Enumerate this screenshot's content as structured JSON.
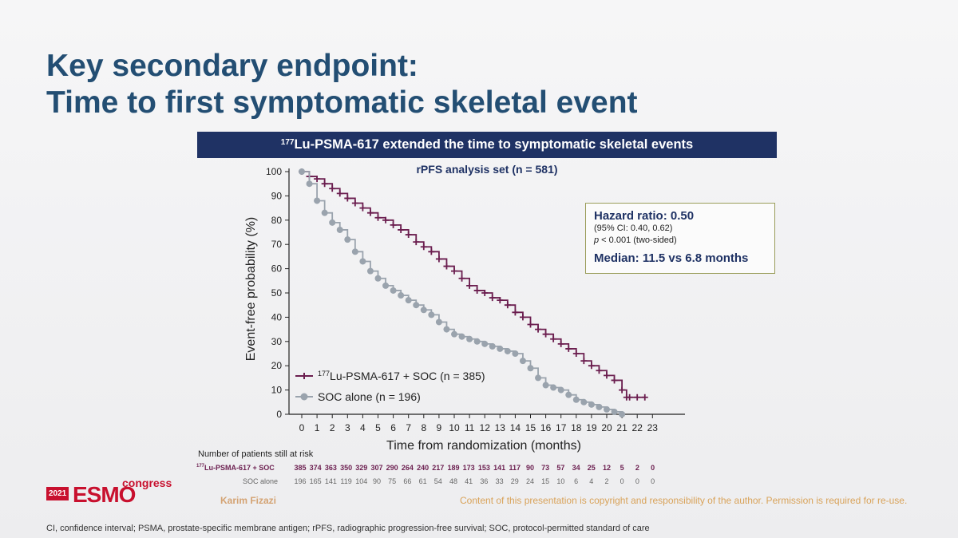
{
  "slide": {
    "title_line1": "Key secondary endpoint:",
    "title_line2": "Time to first symptomatic skeletal event",
    "banner_sup": "177",
    "banner_text": "Lu-PSMA-617 extended the time to symptomatic skeletal events",
    "footnote": "CI, confidence interval; PSMA, prostate-specific membrane antigen; rPFS, radiographic progression-free survival; SOC, protocol-permitted standard of care",
    "author": "Karim Fizazi",
    "copyright": "Content of this presentation is copyright and responsibility of the author. Permission is required for re-use.",
    "logo": {
      "year": "2021",
      "name": "ESMO",
      "suffix": "congress"
    }
  },
  "hazard_box": {
    "title": "Hazard ratio: 0.50",
    "ci": "(95% CI: 0.40, 0.62)",
    "p_label": "p",
    "p_rest": " < 0.001 (two-sided)",
    "median": "Median: 11.5 vs 6.8 months"
  },
  "risk_table": {
    "title": "Number of patients still at risk",
    "lu_label_sup": "177",
    "lu_label": "Lu-PSMA-617 + SOC",
    "soc_label": "SOC alone",
    "lu_values": [
      385,
      374,
      363,
      350,
      329,
      307,
      290,
      264,
      240,
      217,
      189,
      173,
      153,
      141,
      117,
      90,
      73,
      57,
      34,
      25,
      12,
      5,
      2,
      0
    ],
    "soc_values": [
      196,
      165,
      141,
      119,
      104,
      90,
      75,
      66,
      61,
      54,
      48,
      41,
      36,
      33,
      29,
      24,
      15,
      10,
      6,
      4,
      2,
      0,
      0,
      0
    ]
  },
  "chart_data": {
    "type": "line",
    "subtitle": "rPFS analysis set (n = 581)",
    "xlabel": "Time from randomization (months)",
    "ylabel": "Event-free probability (%)",
    "xlim": [
      0,
      23
    ],
    "ylim": [
      0,
      100
    ],
    "xticks": [
      0,
      1,
      2,
      3,
      4,
      5,
      6,
      7,
      8,
      9,
      10,
      11,
      12,
      13,
      14,
      15,
      16,
      17,
      18,
      19,
      20,
      21,
      22,
      23
    ],
    "yticks": [
      0,
      10,
      20,
      30,
      40,
      50,
      60,
      70,
      80,
      90,
      100
    ],
    "legend_position": "bottom-left",
    "series": [
      {
        "name_sup": "177",
        "name": "Lu-PSMA-617 + SOC (n = 385)",
        "color": "#6b1e4f",
        "marker": "plus",
        "x": [
          0,
          0.5,
          1,
          1.5,
          2,
          2.5,
          3,
          3.5,
          4,
          4.5,
          5,
          5.5,
          6,
          6.5,
          7,
          7.5,
          8,
          8.5,
          9,
          9.5,
          10,
          10.5,
          11,
          11.5,
          12,
          12.5,
          13,
          13.5,
          14,
          14.5,
          15,
          15.5,
          16,
          16.5,
          17,
          17.5,
          18,
          18.5,
          19,
          19.5,
          20,
          20.5,
          21,
          21.3,
          21.5,
          22,
          22.5
        ],
        "y": [
          100,
          98,
          97,
          95,
          93,
          91,
          89,
          87,
          85,
          83,
          81,
          80,
          78,
          76,
          74,
          71,
          69,
          67,
          64,
          61,
          59,
          56,
          53,
          51,
          50,
          48,
          47,
          45,
          42,
          40,
          37,
          35,
          33,
          31,
          29,
          27,
          25,
          22,
          20,
          18,
          16,
          14,
          10,
          7,
          7,
          7,
          7
        ]
      },
      {
        "name": "SOC alone (n = 196)",
        "color": "#9aa3ad",
        "marker": "circle",
        "x": [
          0,
          0.5,
          1,
          1.5,
          2,
          2.5,
          3,
          3.5,
          4,
          4.5,
          5,
          5.5,
          6,
          6.5,
          7,
          7.5,
          8,
          8.5,
          9,
          9.5,
          10,
          10.5,
          11,
          11.5,
          12,
          12.5,
          13,
          13.5,
          14,
          14.5,
          15,
          15.5,
          16,
          16.5,
          17,
          17.5,
          18,
          18.5,
          19,
          19.5,
          20,
          20.5,
          21
        ],
        "y": [
          100,
          95,
          88,
          83,
          79,
          76,
          72,
          67,
          63,
          59,
          56,
          53,
          51,
          49,
          47,
          45,
          43,
          41,
          38,
          35,
          33,
          32,
          31,
          30,
          29,
          28,
          27,
          26,
          25,
          22,
          19,
          15,
          12,
          11,
          10,
          8,
          6,
          5,
          4,
          3,
          2,
          1,
          0
        ]
      }
    ]
  }
}
